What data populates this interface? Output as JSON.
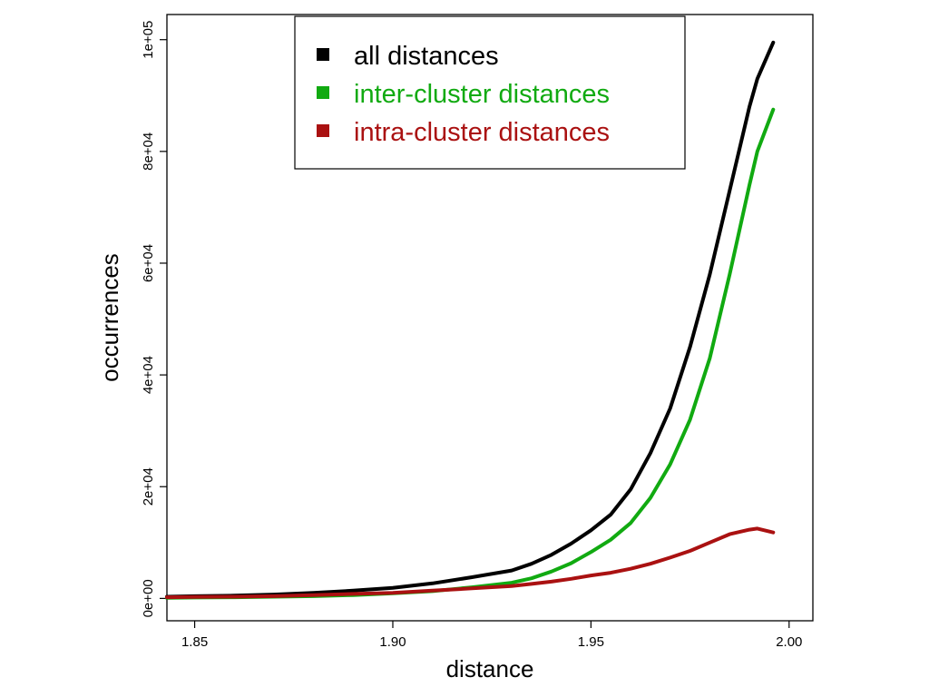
{
  "chart_data": {
    "type": "line",
    "title": "",
    "xlabel": "distance",
    "ylabel": "occurrences",
    "xlim": [
      1.843,
      2.006
    ],
    "ylim": [
      -4000,
      104500
    ],
    "x_ticks": [
      1.85,
      1.9,
      1.95,
      2.0
    ],
    "x_tick_labels": [
      "1.85",
      "1.90",
      "1.95",
      "2.00"
    ],
    "y_ticks": [
      0,
      20000,
      40000,
      60000,
      80000,
      100000
    ],
    "y_tick_labels": [
      "0e+00",
      "2e+04",
      "4e+04",
      "6e+04",
      "8e+04",
      "1e+05"
    ],
    "grid": false,
    "legend_position": "top-center",
    "x": [
      1.843,
      1.85,
      1.86,
      1.87,
      1.88,
      1.89,
      1.9,
      1.91,
      1.92,
      1.93,
      1.935,
      1.94,
      1.945,
      1.95,
      1.955,
      1.96,
      1.965,
      1.97,
      1.975,
      1.98,
      1.985,
      1.99,
      1.992,
      1.996
    ],
    "series": [
      {
        "name": "all distances",
        "color": "#000000",
        "values": [
          300,
          400,
          500,
          700,
          1000,
          1400,
          1900,
          2700,
          3800,
          5000,
          6200,
          7800,
          9800,
          12200,
          15000,
          19500,
          26000,
          34000,
          45000,
          58000,
          73000,
          88000,
          93000,
          99500
        ]
      },
      {
        "name": "inter-cluster distances",
        "color": "#11aa11",
        "values": [
          100,
          150,
          200,
          300,
          400,
          600,
          900,
          1300,
          2000,
          2800,
          3600,
          4800,
          6300,
          8300,
          10500,
          13500,
          18000,
          24000,
          32000,
          43000,
          58000,
          74000,
          80000,
          87500
        ]
      },
      {
        "name": "intra-cluster distances",
        "color": "#aa1111",
        "values": [
          200,
          250,
          300,
          400,
          600,
          800,
          1000,
          1400,
          1800,
          2200,
          2600,
          3000,
          3500,
          4100,
          4600,
          5300,
          6200,
          7300,
          8500,
          10000,
          11500,
          12300,
          12500,
          11800
        ]
      }
    ]
  }
}
